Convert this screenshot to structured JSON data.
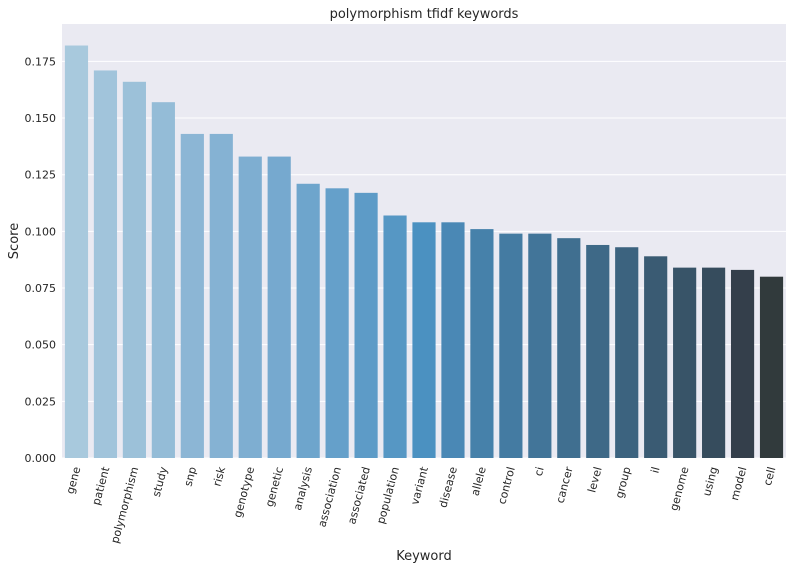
{
  "chart_data": {
    "type": "bar",
    "title": "polymorphism tfidf keywords",
    "xlabel": "Keyword",
    "ylabel": "Score",
    "ylim": [
      0,
      0.1915
    ],
    "yticks": [
      "0.000",
      "0.025",
      "0.050",
      "0.075",
      "0.100",
      "0.125",
      "0.150",
      "0.175"
    ],
    "grid": true,
    "categories": [
      "gene",
      "patient",
      "polymorphism",
      "study",
      "snp",
      "risk",
      "genotype",
      "genetic",
      "analysis",
      "association",
      "associated",
      "population",
      "variant",
      "disease",
      "allele",
      "control",
      "ci",
      "cancer",
      "level",
      "group",
      "il",
      "genome",
      "using",
      "model",
      "cell"
    ],
    "values": [
      0.182,
      0.171,
      0.166,
      0.157,
      0.143,
      0.143,
      0.133,
      0.133,
      0.121,
      0.119,
      0.117,
      0.107,
      0.104,
      0.104,
      0.101,
      0.099,
      0.099,
      0.097,
      0.094,
      0.093,
      0.089,
      0.084,
      0.084,
      0.083,
      0.08
    ],
    "colors": [
      "#a8c9dd",
      "#a1c4db",
      "#9cc1d9",
      "#94bcd7",
      "#8cb6d5",
      "#85b2d3",
      "#7eaed1",
      "#76a9cf",
      "#6ea5cc",
      "#65a0ca",
      "#5d9bc7",
      "#5697c4",
      "#4b91c1",
      "#4a88b5",
      "#4681aa",
      "#447ba2",
      "#427599",
      "#406f90",
      "#3e6987",
      "#3c637f",
      "#3a5b73",
      "#385468",
      "#364c5d",
      "#343f4b",
      "#313a3c"
    ]
  }
}
